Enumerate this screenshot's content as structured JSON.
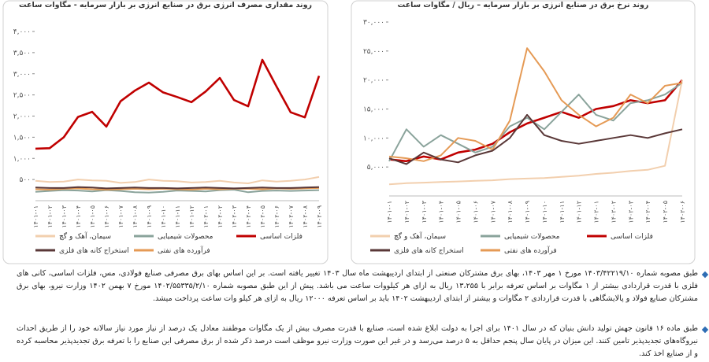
{
  "chart_data": [
    {
      "type": "line",
      "title": "روند مقداری مصرف انرژی برق در صنایع انرژی بر بازار سرمایه  - مگاوات ساعت",
      "categories": [
        "۱۴۰۱-۰۱",
        "۱۴۰۱-۰۲",
        "۱۴۰۱-۰۳",
        "۱۴۰۱-۰۴",
        "۱۴۰۱-۰۵",
        "۱۴۰۱-۰۶",
        "۱۴۰۱-۰۷",
        "۱۴۰۱-۰۸",
        "۱۴۰۱-۰۹",
        "۱۴۰۱-۱۰",
        "۱۴۰۱-۱۱",
        "۱۴۰۱-۱۲",
        "۱۴۰۲-۰۱",
        "۱۴۰۲-۰۲",
        "۱۴۰۲-۰۳",
        "۱۴۰۲-۰۴",
        "۱۴۰۲-۰۵",
        "۱۴۰۲-۰۶",
        "۱۴۰۲-۰۷",
        "۱۴۰۲-۰۸",
        "۱۴۰۲-۰۹"
      ],
      "series": [
        {
          "name": "فلزات اساسی",
          "color": "#c00000",
          "values": [
            1230,
            1240,
            1500,
            1980,
            2100,
            1750,
            2350,
            2600,
            2790,
            2560,
            2450,
            2330,
            2580,
            2900,
            2380,
            2230,
            3330,
            2700,
            2090,
            1970,
            2950
          ]
        },
        {
          "name": "محصولات شیمیایی",
          "color": "#8aa39b",
          "values": [
            210,
            230,
            250,
            240,
            220,
            250,
            230,
            200,
            190,
            210,
            240,
            230,
            220,
            250,
            260,
            200,
            230,
            240,
            230,
            240,
            250
          ]
        },
        {
          "name": "سیمان، آهک و گچ",
          "color": "#f2cfae",
          "values": [
            470,
            440,
            450,
            500,
            480,
            470,
            420,
            440,
            500,
            470,
            460,
            430,
            440,
            470,
            430,
            410,
            480,
            450,
            470,
            500,
            560
          ]
        },
        {
          "name": "فرآورده های نفتی",
          "color": "#e59a55",
          "values": [
            270,
            260,
            280,
            290,
            270,
            260,
            270,
            280,
            270,
            280,
            270,
            260,
            280,
            270,
            280,
            280,
            270,
            290,
            280,
            290,
            300
          ]
        },
        {
          "name": "استخراج کانه های فلزی",
          "color": "#5a3838",
          "values": [
            310,
            300,
            300,
            320,
            310,
            290,
            300,
            310,
            300,
            300,
            290,
            300,
            310,
            300,
            290,
            300,
            310,
            300,
            300,
            310,
            320
          ]
        }
      ],
      "ylim": [
        0,
        4000
      ],
      "yticks": [
        {
          "value": 500,
          "label": "۵۰۰"
        },
        {
          "value": 1000,
          "label": "۱,۰۰۰"
        },
        {
          "value": 1500,
          "label": "۱,۵۰۰"
        },
        {
          "value": 2000,
          "label": "۲,۰۰۰"
        },
        {
          "value": 2500,
          "label": "۲,۵۰۰"
        },
        {
          "value": 3000,
          "label": "۳,۰۰۰"
        },
        {
          "value": 3500,
          "label": "۳,۵۰۰"
        },
        {
          "value": 4000,
          "label": "۴,۰۰۰"
        }
      ],
      "grid": false
    },
    {
      "type": "line",
      "title": "روند نرخ برق در صنایع انرژی بر بازار سرمایه – ریال / مگاوات ساعت",
      "categories": [
        "۱۴۰۱-۰۱",
        "۱۴۰۱-۰۲",
        "۱۴۰۱-۰۳",
        "۱۴۰۱-۰۴",
        "۱۴۰۱-۰۵",
        "۱۴۰۱-۰۶",
        "۱۴۰۱-۰۷",
        "۱۴۰۱-۰۸",
        "۱۴۰۱-۰۹",
        "۱۴۰۱-۱۰",
        "۱۴۰۱-۱۱",
        "۱۴۰۱-۱۲",
        "۱۴۰۲-۰۱",
        "۱۴۰۲-۰۲",
        "۱۴۰۲-۰۳",
        "۱۴۰۲-۰۴",
        "۱۴۰۲-۰۵",
        "۱۴۰۲-۰۶"
      ],
      "series": [
        {
          "name": "فلزات اساسی",
          "color": "#c00000",
          "values": [
            6300,
            6000,
            6800,
            6300,
            7500,
            8000,
            9000,
            11000,
            12500,
            13500,
            14500,
            13500,
            15000,
            15500,
            16500,
            16000,
            16500,
            20000
          ]
        },
        {
          "name": "محصولات شیمیایی",
          "color": "#8aa39b",
          "values": [
            6000,
            11500,
            8500,
            10500,
            9000,
            7500,
            8500,
            12000,
            13500,
            11500,
            14500,
            17500,
            14000,
            13000,
            16000,
            16500,
            17500,
            19500
          ]
        },
        {
          "name": "سیمان، آهک و گچ",
          "color": "#f2cfae",
          "values": [
            2000,
            2200,
            2300,
            2400,
            2500,
            2600,
            2700,
            2900,
            3000,
            3100,
            3300,
            3500,
            3800,
            4000,
            4300,
            4500,
            5200,
            20000
          ]
        },
        {
          "name": "فرآورده های نفتی",
          "color": "#e59a55",
          "values": [
            6800,
            6500,
            6000,
            7000,
            10000,
            9500,
            8000,
            13000,
            25500,
            21500,
            16500,
            14000,
            12000,
            13500,
            17500,
            16000,
            19000,
            19500
          ]
        },
        {
          "name": "استخراج کانه های فلزی",
          "color": "#5a3838",
          "values": [
            6500,
            5500,
            7500,
            6300,
            5800,
            7000,
            7800,
            10000,
            14000,
            10500,
            9500,
            9000,
            9500,
            10000,
            10500,
            10000,
            10800,
            11500
          ]
        }
      ],
      "ylim": [
        0,
        30000
      ],
      "yticks": [
        {
          "value": 5000,
          "label": "۵,۰۰۰"
        },
        {
          "value": 10000,
          "label": "۱۰,۰۰۰"
        },
        {
          "value": 15000,
          "label": "۱۵,۰۰۰"
        },
        {
          "value": 20000,
          "label": "۲۰,۰۰۰"
        },
        {
          "value": 25000,
          "label": "۲۵,۰۰۰"
        },
        {
          "value": 30000,
          "label": "۳۰,۰۰۰"
        }
      ],
      "grid": false
    }
  ],
  "paragraphs": [
    "طبق مصوبه شماره ۱۴۰۳/۴۲۲۱۹/۱۰ مورخ ۱ مهر ۱۴۰۳، بهای برق مشترکان صنعتی از ابتدای اردیبهشت ماه سال ۱۴۰۳ تغییر یافته است. بر این اساس بهای برق مصرفی صنایع فولادی، مس، فلزات اساسی، کانی های فلزی با قدرت قراردادی بیشتر از ۱ مگاوات بر اساس تعرفه برابر با ۱۳،۲۵۵ ریال به ازای هر کیلووات ساعت می باشد. پیش از این طبق مصوبه شماره ۱۴۰۲/۵۵۳۳۵/۲/۱۰ مورخ ۷ بهمن ۱۴۰۲ وزارت نیرو، بهای برق مشترکان صنایع فولاد و پالایشگاهی با قدرت قراردادی ۲ مگاوات و بیشتر از ابتدای اردیبهشت ۱۴۰۲ باید بر اساس تعرفه ۱۲۰۰۰ ریال به ازای هر کیلو وات ساعت پرداخت میشد.",
    "طبق ماده ۱۶ قانون جهش تولید دانش بنیان که در سال ۱۴۰۱ برای اجرا به دولت ابلاغ شده است، صنایع با قدرت مصرف بیش از یک مگاوات موظفند معادل یک درصد از نیاز مورد نیاز سالانه خود را از طریق احداث نیروگاه‌های تجدیدپذیر تامین کنند. این میزان در پایان سال پنجم حداقل به ۵ درصد می‌رسد و در غیر این صورت وزارت نیرو موظف است درصد ذکر شده از برق مصرفی این صنایع را با تعرفه برق تجدیدپذیر محاسبه کرده و از صنایع اخذ کند."
  ]
}
